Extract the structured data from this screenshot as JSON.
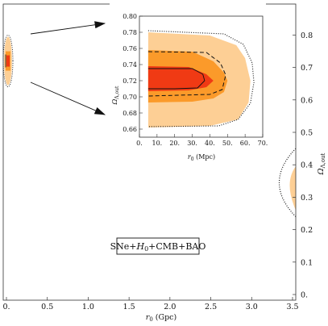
{
  "chart_data": [
    {
      "type": "contour",
      "panel": "main",
      "xlabel": "r0 (Gpc)",
      "xlabel_parts": {
        "base": "r",
        "sub": "0",
        "rest": " (Gpc)"
      },
      "ylabel_parts": {
        "base": "Ω",
        "sub": "Λ,out"
      },
      "xlim": [
        0,
        3.5
      ],
      "ylim": [
        0,
        0.9
      ],
      "xticks": [
        0,
        0.5,
        1,
        1.5,
        2,
        2.5,
        3,
        3.5
      ],
      "xtick_labels": [
        "0.",
        "0.5",
        "1.0",
        "1.5",
        "2.0",
        "2.5",
        "3.0",
        "3.5"
      ],
      "yticks": [
        0,
        0.1,
        0.2,
        0.3,
        0.4,
        0.5,
        0.6,
        0.7,
        0.8
      ],
      "ytick_labels": [
        "0.",
        "0.1",
        "0.2",
        "0.3",
        "0.4",
        "0.5",
        "0.6",
        "0.7",
        "0.8"
      ],
      "annotation": {
        "pre": "SNe+",
        "h": "H",
        "hsub": "0",
        "post": "+CMB+BAO"
      },
      "colors": {
        "light": "#fdcf95",
        "mid": "#fb9a2a",
        "dark": "#f03a14",
        "line": "#111111"
      },
      "regions": [
        {
          "name": "small-r0-region",
          "x_range": [
            0.0,
            0.06
          ],
          "y_range": [
            0.66,
            0.78
          ]
        },
        {
          "name": "large-r0-region",
          "x_range": [
            3.5,
            3.6
          ],
          "y_range": [
            0.24,
            0.45
          ]
        }
      ]
    },
    {
      "type": "contour",
      "panel": "inset",
      "xlabel_parts": {
        "base": "r",
        "sub": "0",
        "rest": " (Mpc)"
      },
      "ylabel_parts": {
        "base": "Ω",
        "sub": "Λ,out"
      },
      "xlim": [
        0,
        70
      ],
      "ylim": [
        0.65,
        0.8
      ],
      "xticks": [
        0,
        10,
        20,
        30,
        40,
        50,
        60,
        70
      ],
      "xtick_labels": [
        "0.",
        "10.",
        "20.",
        "30.",
        "40.",
        "50.",
        "60.",
        "70."
      ],
      "yticks": [
        0.66,
        0.68,
        0.7,
        0.72,
        0.74,
        0.76,
        0.78,
        0.8
      ],
      "ytick_labels": [
        "0.66",
        "0.68",
        "0.70",
        "0.72",
        "0.74",
        "0.76",
        "0.78",
        "0.80"
      ],
      "contours": {
        "light": [
          [
            5,
            0.78
          ],
          [
            40,
            0.776
          ],
          [
            55,
            0.764
          ],
          [
            60,
            0.748
          ],
          [
            63,
            0.72
          ],
          [
            62,
            0.693
          ],
          [
            56,
            0.672
          ],
          [
            40,
            0.664
          ],
          [
            5,
            0.662
          ]
        ],
        "mid": [
          [
            5,
            0.758
          ],
          [
            30,
            0.756
          ],
          [
            42,
            0.744
          ],
          [
            48,
            0.73
          ],
          [
            50,
            0.72
          ],
          [
            48,
            0.706
          ],
          [
            42,
            0.698
          ],
          [
            30,
            0.694
          ],
          [
            5,
            0.693
          ]
        ],
        "dark": [
          [
            5,
            0.738
          ],
          [
            28,
            0.737
          ],
          [
            38,
            0.728
          ],
          [
            42,
            0.72
          ],
          [
            38,
            0.712
          ],
          [
            28,
            0.708
          ],
          [
            5,
            0.707
          ]
        ],
        "solid": [
          [
            5,
            0.735
          ],
          [
            30,
            0.735
          ],
          [
            36,
            0.728
          ],
          [
            37,
            0.72
          ],
          [
            33,
            0.711
          ],
          [
            20,
            0.71
          ],
          [
            5,
            0.71
          ]
        ],
        "dashed": [
          [
            5,
            0.756
          ],
          [
            38,
            0.755
          ],
          [
            46,
            0.742
          ],
          [
            49,
            0.727
          ],
          [
            47,
            0.709
          ],
          [
            40,
            0.703
          ],
          [
            5,
            0.701
          ]
        ],
        "dotted": [
          [
            5,
            0.782
          ],
          [
            48,
            0.778
          ],
          [
            59,
            0.765
          ],
          [
            64,
            0.742
          ],
          [
            65,
            0.718
          ],
          [
            63,
            0.692
          ],
          [
            56,
            0.672
          ],
          [
            45,
            0.664
          ],
          [
            5,
            0.663
          ]
        ]
      }
    }
  ]
}
